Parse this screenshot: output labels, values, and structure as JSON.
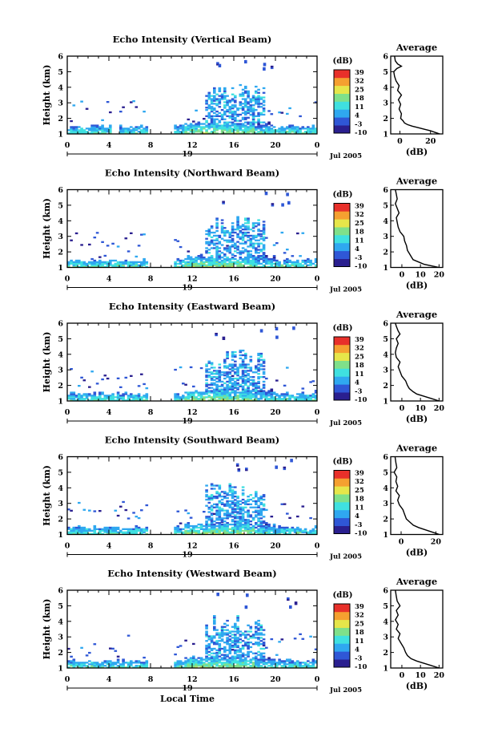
{
  "chart_data": [
    {
      "type": "heatmap",
      "title": "Echo Intensity (Vertical Beam)",
      "ylabel": "Height (km)",
      "yticks": [
        "1",
        "2",
        "3",
        "4",
        "5",
        "6"
      ],
      "xticks": [
        "0",
        "4",
        "8",
        "12",
        "16",
        "20",
        "0"
      ],
      "xday": "19",
      "xdate": "Jul 2005",
      "colorbar_label": "(dB)",
      "colorbar_ticks": [
        "39",
        "32",
        "25",
        "18",
        "11",
        "4",
        "-3",
        "-10"
      ],
      "colorscale": [
        "#2a1f8f",
        "#2f57d6",
        "#2fa8f0",
        "#3fe0e0",
        "#7fe08a",
        "#e6e64a",
        "#f5a030",
        "#e8302a"
      ],
      "profile_title": "Average",
      "profile_xlabel": "(dB)",
      "profile_xticks": [
        "0",
        "20"
      ],
      "profile_xrange": [
        -6,
        28
      ],
      "profile_ylim": [
        1,
        6
      ],
      "profile": [
        [
          26,
          1.0
        ],
        [
          23,
          1.1
        ],
        [
          20,
          1.2
        ],
        [
          16,
          1.3
        ],
        [
          12,
          1.4
        ],
        [
          8,
          1.5
        ],
        [
          5,
          1.6
        ],
        [
          3,
          1.7
        ],
        [
          2,
          1.85
        ],
        [
          0.5,
          2.0
        ],
        [
          1,
          2.3
        ],
        [
          -0.5,
          2.6
        ],
        [
          0.5,
          2.9
        ],
        [
          -1,
          3.2
        ],
        [
          1,
          3.5
        ],
        [
          -1.5,
          3.8
        ],
        [
          -0.5,
          4.1
        ],
        [
          -2.5,
          4.4
        ],
        [
          -3.5,
          4.7
        ],
        [
          -4,
          5.0
        ],
        [
          -2,
          5.2
        ],
        [
          1,
          5.35
        ],
        [
          -1.5,
          5.5
        ],
        [
          -3,
          5.7
        ],
        [
          -3.5,
          6.0
        ]
      ]
    },
    {
      "type": "heatmap",
      "title": "Echo Intensity (Northward Beam)",
      "ylabel": "Height (km)",
      "yticks": [
        "1",
        "2",
        "3",
        "4",
        "5",
        "6"
      ],
      "xticks": [
        "0",
        "4",
        "8",
        "12",
        "16",
        "20",
        "0"
      ],
      "xday": "19",
      "xdate": "Jul 2005",
      "colorbar_label": "(dB)",
      "colorbar_ticks": [
        "39",
        "32",
        "25",
        "18",
        "11",
        "4",
        "-3",
        "-10"
      ],
      "colorscale": [
        "#2a1f8f",
        "#2f57d6",
        "#2fa8f0",
        "#3fe0e0",
        "#7fe08a",
        "#e6e64a",
        "#f5a030",
        "#e8302a"
      ],
      "profile_title": "Average",
      "profile_xlabel": "(dB)",
      "profile_xticks": [
        "0",
        "10",
        "20"
      ],
      "profile_xrange": [
        -6,
        22
      ],
      "profile_ylim": [
        1,
        6
      ],
      "profile": [
        [
          20,
          1.0
        ],
        [
          16,
          1.1
        ],
        [
          12,
          1.2
        ],
        [
          9,
          1.35
        ],
        [
          6,
          1.5
        ],
        [
          5,
          1.7
        ],
        [
          4,
          1.9
        ],
        [
          3,
          2.1
        ],
        [
          2.5,
          2.4
        ],
        [
          1.5,
          2.7
        ],
        [
          1,
          3.0
        ],
        [
          -1,
          3.3
        ],
        [
          -2,
          3.6
        ],
        [
          -2.5,
          3.9
        ],
        [
          -3,
          4.2
        ],
        [
          -1.5,
          4.5
        ],
        [
          -2.5,
          4.8
        ],
        [
          -3.5,
          5.1
        ],
        [
          -2.5,
          5.4
        ],
        [
          -3,
          5.7
        ],
        [
          -3.5,
          6.0
        ]
      ]
    },
    {
      "type": "heatmap",
      "title": "Echo Intensity (Eastward Beam)",
      "ylabel": "Height (km)",
      "yticks": [
        "1",
        "2",
        "3",
        "4",
        "5",
        "6"
      ],
      "xticks": [
        "0",
        "4",
        "8",
        "12",
        "16",
        "20",
        "0"
      ],
      "xday": "19",
      "xdate": "Jul 2005",
      "colorbar_label": "(dB)",
      "colorbar_ticks": [
        "39",
        "32",
        "25",
        "18",
        "11",
        "4",
        "-3",
        "-10"
      ],
      "colorscale": [
        "#2a1f8f",
        "#2f57d6",
        "#2fa8f0",
        "#3fe0e0",
        "#7fe08a",
        "#e6e64a",
        "#f5a030",
        "#e8302a"
      ],
      "profile_title": "Average",
      "profile_xlabel": "(dB)",
      "profile_xticks": [
        "0",
        "10",
        "20"
      ],
      "profile_xrange": [
        -6,
        22
      ],
      "profile_ylim": [
        1,
        6
      ],
      "profile": [
        [
          20,
          1.0
        ],
        [
          16,
          1.15
        ],
        [
          12,
          1.3
        ],
        [
          8,
          1.45
        ],
        [
          6,
          1.6
        ],
        [
          4,
          1.8
        ],
        [
          3,
          2.0
        ],
        [
          2,
          2.3
        ],
        [
          0,
          2.6
        ],
        [
          -1,
          2.9
        ],
        [
          -2,
          3.2
        ],
        [
          -1,
          3.5
        ],
        [
          -3,
          3.8
        ],
        [
          -3.5,
          4.1
        ],
        [
          -3,
          4.4
        ],
        [
          -2,
          4.7
        ],
        [
          -3,
          5.0
        ],
        [
          -1,
          5.3
        ],
        [
          -2,
          5.5
        ],
        [
          -3,
          5.8
        ],
        [
          -3.5,
          6.0
        ]
      ]
    },
    {
      "type": "heatmap",
      "title": "Echo Intensity (Southward Beam)",
      "ylabel": "Height (km)",
      "yticks": [
        "1",
        "2",
        "3",
        "4",
        "5",
        "6"
      ],
      "xticks": [
        "0",
        "4",
        "8",
        "12",
        "16",
        "20",
        "0"
      ],
      "xday": "19",
      "xdate": "Jul 2005",
      "colorbar_label": "(dB)",
      "colorbar_ticks": [
        "39",
        "32",
        "25",
        "18",
        "11",
        "4",
        "-3",
        "-10"
      ],
      "colorscale": [
        "#2a1f8f",
        "#2f57d6",
        "#2fa8f0",
        "#3fe0e0",
        "#7fe08a",
        "#e6e64a",
        "#f5a030",
        "#e8302a"
      ],
      "profile_title": "Average",
      "profile_xlabel": "(dB)",
      "profile_xticks": [
        "0",
        "20"
      ],
      "profile_xrange": [
        -6,
        24
      ],
      "profile_ylim": [
        1,
        6
      ],
      "profile": [
        [
          22,
          1.0
        ],
        [
          18,
          1.15
        ],
        [
          14,
          1.3
        ],
        [
          10,
          1.45
        ],
        [
          7,
          1.6
        ],
        [
          5,
          1.8
        ],
        [
          3,
          2.0
        ],
        [
          2,
          2.3
        ],
        [
          1,
          2.6
        ],
        [
          -1,
          2.9
        ],
        [
          -2,
          3.2
        ],
        [
          -1,
          3.5
        ],
        [
          -3,
          3.8
        ],
        [
          -2,
          4.1
        ],
        [
          -3,
          4.4
        ],
        [
          -2.5,
          4.7
        ],
        [
          -4,
          5.0
        ],
        [
          -2.5,
          5.3
        ],
        [
          -3,
          5.6
        ],
        [
          -3.5,
          6.0
        ]
      ]
    },
    {
      "type": "heatmap",
      "title": "Echo Intensity (Westward Beam)",
      "ylabel": "Height (km)",
      "yticks": [
        "1",
        "2",
        "3",
        "4",
        "5",
        "6"
      ],
      "xticks": [
        "0",
        "4",
        "8",
        "12",
        "16",
        "20",
        "0"
      ],
      "xday": "19",
      "xdate": "Jul 2005",
      "xlabel": "Local Time",
      "colorbar_label": "(dB)",
      "colorbar_ticks": [
        "39",
        "32",
        "25",
        "18",
        "11",
        "4",
        "-3",
        "-10"
      ],
      "colorscale": [
        "#2a1f8f",
        "#2f57d6",
        "#2fa8f0",
        "#3fe0e0",
        "#7fe08a",
        "#e6e64a",
        "#f5a030",
        "#e8302a"
      ],
      "profile_title": "Average",
      "profile_xlabel": "(dB)",
      "profile_xticks": [
        "0",
        "10",
        "20"
      ],
      "profile_xrange": [
        -6,
        22
      ],
      "profile_ylim": [
        1,
        6
      ],
      "profile": [
        [
          20,
          1.0
        ],
        [
          16,
          1.15
        ],
        [
          12,
          1.3
        ],
        [
          8,
          1.45
        ],
        [
          5,
          1.6
        ],
        [
          3,
          1.8
        ],
        [
          2,
          2.0
        ],
        [
          1,
          2.3
        ],
        [
          -0.5,
          2.6
        ],
        [
          -2,
          2.9
        ],
        [
          -1,
          3.2
        ],
        [
          -3,
          3.5
        ],
        [
          -2,
          3.8
        ],
        [
          -3.5,
          4.1
        ],
        [
          -2,
          4.4
        ],
        [
          -3,
          4.7
        ],
        [
          -1,
          5.0
        ],
        [
          -2.5,
          5.3
        ],
        [
          -3,
          5.6
        ],
        [
          -3.5,
          6.0
        ]
      ]
    }
  ]
}
